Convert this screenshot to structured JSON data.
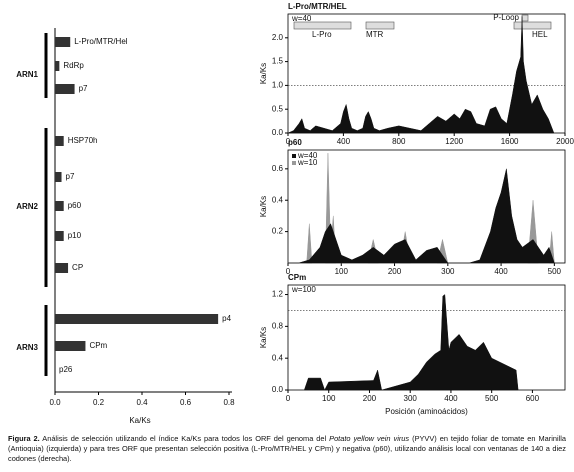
{
  "chart_data": [
    {
      "type": "hbar",
      "xlabel": "Ka/Ks",
      "color": "#333333",
      "categories": [
        "L-Pro/MTR/Hel",
        "RdRp",
        "p7",
        "HSP70h",
        "p7",
        "p60",
        "p10",
        "CP",
        "p4",
        "CPm",
        "p26"
      ],
      "values": [
        0.07,
        0.02,
        0.09,
        0.04,
        0.03,
        0.04,
        0.04,
        0.06,
        0.75,
        0.14,
        0
      ],
      "groups": [
        "ARN1",
        "ARN2",
        "ARN3"
      ],
      "xlim": [
        0,
        0.8
      ],
      "xticks": [
        {
          "value": 0,
          "label": "0.0"
        },
        0.2,
        0.4,
        0.6,
        0.8
      ]
    },
    {
      "type": "area",
      "title": "L-Pro/MTR/HEL",
      "ylabel": "Ka/Ks",
      "annotation": "w=40",
      "domains": [
        "L-Pro",
        "MTR",
        "P-Loop",
        "HEL"
      ],
      "xlim": [
        0,
        2000
      ],
      "xticks": [
        0,
        400,
        800,
        1200,
        1600,
        2000
      ],
      "ylim": [
        0,
        2.5
      ],
      "yticks": [
        {
          "value": 0,
          "label": "0.0"
        },
        {
          "value": 0.5,
          "label": "0.5"
        },
        {
          "value": 1,
          "label": "1.0"
        },
        {
          "value": 1.5,
          "label": "1.5"
        },
        {
          "value": 2,
          "label": "2.0"
        }
      ],
      "reference_line": 1,
      "series": [
        {
          "color": "#111111",
          "x": [
            0,
            40,
            80,
            100,
            120,
            160,
            200,
            260,
            320,
            380,
            400,
            420,
            440,
            460,
            500,
            540,
            560,
            580,
            600,
            620,
            660,
            720,
            800,
            880,
            960,
            1020,
            1080,
            1140,
            1200,
            1240,
            1280,
            1320,
            1360,
            1420,
            1460,
            1500,
            1540,
            1580,
            1620,
            1650,
            1680,
            1690,
            1700,
            1720,
            1760,
            1800,
            1840,
            1880,
            1920
          ],
          "values": [
            0,
            0.05,
            0.2,
            0.3,
            0.1,
            0.05,
            0.15,
            0.1,
            0.05,
            0.2,
            0.45,
            0.6,
            0.3,
            0.1,
            0.05,
            0.1,
            0.35,
            0.45,
            0.3,
            0.1,
            0.05,
            0.1,
            0.15,
            0.1,
            0.05,
            0.2,
            0.35,
            0.25,
            0.4,
            0.3,
            0.5,
            0.45,
            0.2,
            0.15,
            0.5,
            0.55,
            0.3,
            0.2,
            0.8,
            1.3,
            1.6,
            2.45,
            1.5,
            1.1,
            0.6,
            0.8,
            0.5,
            0.3,
            0
          ]
        }
      ]
    },
    {
      "type": "area",
      "title": "p60",
      "ylabel": "Ka/Ks",
      "xlim": [
        0,
        520
      ],
      "xticks": [
        0,
        100,
        200,
        300,
        400,
        500
      ],
      "ylim": [
        0,
        0.72
      ],
      "yticks": [
        0.2,
        0.4,
        0.6
      ],
      "series": [
        {
          "name": "w=10",
          "color": "#999999",
          "x": [
            0,
            35,
            40,
            45,
            70,
            75,
            80,
            85,
            90,
            150,
            160,
            170,
            210,
            220,
            230,
            280,
            290,
            300,
            400,
            405,
            410,
            450,
            460,
            470,
            490,
            495,
            500
          ],
          "values": [
            0,
            0,
            0.25,
            0,
            0,
            0.7,
            0.1,
            0.3,
            0,
            0,
            0.15,
            0,
            0,
            0.2,
            0,
            0,
            0.15,
            0,
            0,
            0.3,
            0,
            0,
            0.4,
            0,
            0,
            0.2,
            0
          ]
        },
        {
          "name": "w=40",
          "color": "#111111",
          "x": [
            0,
            20,
            40,
            60,
            70,
            80,
            90,
            100,
            120,
            140,
            160,
            180,
            200,
            220,
            240,
            260,
            280,
            300,
            320,
            340,
            360,
            380,
            390,
            400,
            410,
            420,
            430,
            440,
            460,
            480,
            490,
            500
          ],
          "values": [
            0,
            0,
            0.02,
            0.1,
            0.2,
            0.25,
            0.15,
            0.05,
            0.02,
            0.05,
            0.1,
            0.05,
            0.12,
            0.15,
            0.02,
            0.08,
            0.1,
            0,
            0,
            0,
            0.02,
            0.2,
            0.35,
            0.45,
            0.6,
            0.3,
            0.15,
            0.1,
            0.15,
            0.05,
            0.1,
            0
          ]
        }
      ]
    },
    {
      "type": "area",
      "title": "CPm",
      "ylabel": "Ka/Ks",
      "annotation": "w=100",
      "xlabel": "Posición (aminoácidos)",
      "xlim": [
        0,
        680
      ],
      "xticks": [
        0,
        100,
        200,
        300,
        400,
        500,
        600
      ],
      "ylim": [
        0,
        1.32
      ],
      "yticks": [
        {
          "value": 0,
          "label": "0.0"
        },
        0.4,
        0.8,
        1.2
      ],
      "reference_line": 1,
      "series": [
        {
          "color": "#111111",
          "x": [
            40,
            50,
            80,
            90,
            100,
            210,
            220,
            230,
            300,
            320,
            340,
            360,
            375,
            380,
            385,
            395,
            400,
            420,
            440,
            460,
            480,
            500,
            520,
            540,
            560,
            565
          ],
          "values": [
            0,
            0.15,
            0.15,
            0,
            0.1,
            0.12,
            0.25,
            0,
            0.1,
            0.2,
            0.35,
            0.45,
            0.5,
            1.18,
            1.2,
            0.5,
            0.6,
            0.7,
            0.55,
            0.5,
            0.6,
            0.4,
            0.35,
            0.3,
            0.25,
            0
          ]
        }
      ]
    }
  ],
  "caption": {
    "label": "Figura 2.",
    "text1": "Análisis de selección utilizando el índice Ka/Ks para todos los ORF del genoma del",
    "italic": "Potato yellow vein virus",
    "text2": "(PYVV) en tejido foliar de tomate en Marinilla (Antioquia) (izquierda) y para tres ORF que presentan selección positiva (L-Pro/MTR/HEL y CPm) y negativa (p60), utilizando análisis local con ventanas de 140 a diez codones (derecha)."
  }
}
